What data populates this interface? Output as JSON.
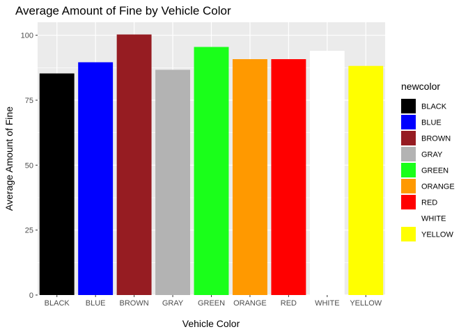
{
  "chart_data": {
    "type": "bar",
    "title": "Average Amount of Fine by Vehicle Color",
    "xlabel": "Vehicle Color",
    "ylabel": "Average Amount of Fine",
    "categories": [
      "BLACK",
      "BLUE",
      "BROWN",
      "GRAY",
      "GREEN",
      "ORANGE",
      "RED",
      "WHITE",
      "YELLOW"
    ],
    "values": [
      85.3,
      89.6,
      100.3,
      86.7,
      95.5,
      90.8,
      90.8,
      94.0,
      88.2
    ],
    "colors": [
      "#000000",
      "#0000ff",
      "#961c22",
      "#b3b3b3",
      "#1aff1a",
      "#ff9900",
      "#ff0000",
      "#ffffff",
      "#ffff00"
    ],
    "ylim": [
      0,
      105
    ],
    "yticks": [
      0,
      25,
      50,
      75,
      100
    ],
    "grid": true,
    "panel_background": "#ebebeb",
    "legend": {
      "title": "newcolor",
      "position": "right",
      "entries": [
        "BLACK",
        "BLUE",
        "BROWN",
        "GRAY",
        "GREEN",
        "ORANGE",
        "RED",
        "WHITE",
        "YELLOW"
      ]
    }
  }
}
